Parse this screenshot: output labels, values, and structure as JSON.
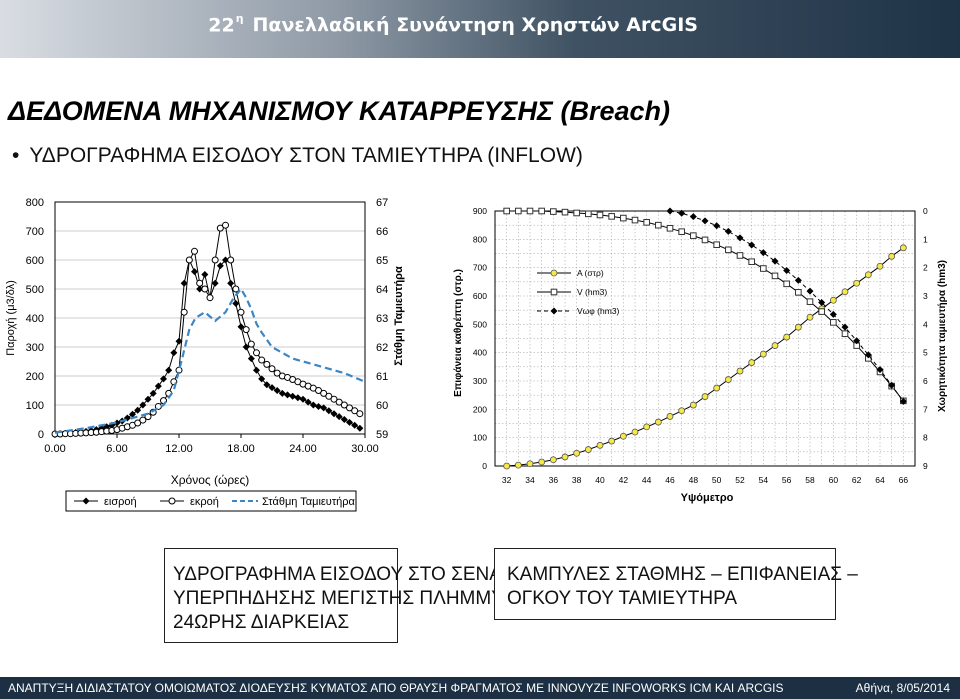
{
  "header": {
    "number": "22",
    "superscript": "η",
    "title": "Πανελλαδική Συνάντηση Χρηστών ArcGIS"
  },
  "page": {
    "title": "ΔΕΔΟΜΕΝΑ ΜΗΧΑΝΙΣΜΟΥ ΚΑΤΑΡΡΕΥΣΗΣ (Breach)",
    "bullet": "ΥΔΡΟΓΡΑΦΗΜΑ ΕΙΣΟΔΟΥ ΣΤΟΝ ΤΑΜΙΕΥΤΗΡΑ (INFLOW)"
  },
  "captions": {
    "left": [
      "ΥΔΡΟΓΡΑΦΗΜΑ ΕΙΣΟΔΟΥ ΣΤΟ ΣΕΝΑΡΙΟ",
      "ΥΠΕΡΠΗΔΗΣΗΣ ΜΕΓΙΣΤΗΣ ΠΛΗΜΜΥΡΑΣ",
      "24ΩΡΗΣ ΔΙΑΡΚΕΙΑΣ"
    ],
    "right": [
      "ΚΑΜΠΥΛΕΣ ΣΤΑΘΜΗΣ – ΕΠΙΦΑΝΕΙΑΣ –",
      "ΟΓΚΟΥ ΤΟΥ ΤΑΜΙΕΥΤΗΡΑ"
    ]
  },
  "footer": {
    "left": "ΑΝΑΠΤΥΞΗ ΔΙΔΙΑΣΤΑΤΟΥ ΟΜΟΙΩΜΑΤΟΣ ΔΙΟΔΕΥΣΗΣ ΚΥΜΑΤΟΣ ΑΠΟ ΘΡΑΥΣΗ ΦΡΑΓΜΑΤΟΣ ΜΕ INNOVYZE INFOWORKS ICM ΚΑΙ ARCGIS",
    "right": "Αθήνα, 8/05/2014"
  },
  "colors": {
    "stage_line": "#3a86c6",
    "header_dark": "#1f3347",
    "footer_bg": "#1c2f43"
  },
  "chart_data": [
    {
      "type": "line",
      "xlabel": "Χρόνος (ώρες)",
      "ylabel": "Παροχή (μ3/δλ)",
      "y2label": "Στάθμη Ταμιευτήρα",
      "xlim": [
        0,
        30
      ],
      "ylim": [
        0,
        800
      ],
      "y2lim": [
        59,
        67
      ],
      "x_ticks": [
        "0.00",
        "6.00",
        "12.00",
        "18.00",
        "24.00",
        "30.00"
      ],
      "y_ticks": [
        "0",
        "100",
        "200",
        "300",
        "400",
        "500",
        "600",
        "700",
        "800"
      ],
      "y2_ticks": [
        "59",
        "60",
        "61",
        "62",
        "63",
        "64",
        "65",
        "66",
        "67"
      ],
      "grid": true,
      "legend_position": "bottom",
      "series": [
        {
          "name": "εισροή",
          "marker": "diamond",
          "axis": "y",
          "x": [
            0,
            0.5,
            1,
            1.5,
            2,
            2.5,
            3,
            3.5,
            4,
            4.5,
            5,
            5.5,
            6,
            6.5,
            7,
            7.5,
            8,
            8.5,
            9,
            9.5,
            10,
            10.5,
            11,
            11.5,
            12,
            12.5,
            13,
            13.5,
            14,
            14.5,
            15,
            15.5,
            16,
            16.5,
            17,
            17.5,
            18,
            18.5,
            19,
            19.5,
            20,
            20.5,
            21,
            21.5,
            22,
            22.5,
            23,
            23.5,
            24,
            24.5,
            25,
            25.5,
            26,
            26.5,
            27,
            27.5,
            28,
            28.5,
            29,
            29.5
          ],
          "values": [
            0,
            1,
            2,
            3,
            5,
            7,
            9,
            12,
            15,
            20,
            25,
            30,
            38,
            45,
            55,
            68,
            82,
            100,
            120,
            140,
            165,
            190,
            220,
            280,
            320,
            520,
            600,
            560,
            500,
            550,
            470,
            520,
            580,
            600,
            520,
            450,
            370,
            300,
            260,
            220,
            190,
            170,
            160,
            150,
            140,
            135,
            130,
            125,
            120,
            110,
            100,
            95,
            90,
            80,
            70,
            60,
            50,
            40,
            30,
            20
          ]
        },
        {
          "name": "εκροή",
          "marker": "circle",
          "axis": "y",
          "x": [
            0,
            0.5,
            1,
            1.5,
            2,
            2.5,
            3,
            3.5,
            4,
            4.5,
            5,
            5.5,
            6,
            6.5,
            7,
            7.5,
            8,
            8.5,
            9,
            9.5,
            10,
            10.5,
            11,
            11.5,
            12,
            12.5,
            13,
            13.5,
            14,
            14.5,
            15,
            15.5,
            16,
            16.5,
            17,
            17.5,
            18,
            18.5,
            19,
            19.5,
            20,
            20.5,
            21,
            21.5,
            22,
            22.5,
            23,
            23.5,
            24,
            24.5,
            25,
            25.5,
            26,
            26.5,
            27,
            27.5,
            28,
            28.5,
            29,
            29.5
          ],
          "values": [
            0,
            0,
            1,
            1,
            2,
            3,
            4,
            5,
            6,
            8,
            10,
            12,
            15,
            20,
            25,
            30,
            38,
            48,
            60,
            75,
            95,
            115,
            140,
            180,
            220,
            420,
            600,
            630,
            520,
            500,
            470,
            600,
            710,
            720,
            600,
            500,
            420,
            360,
            310,
            280,
            255,
            240,
            225,
            210,
            200,
            195,
            188,
            180,
            172,
            165,
            158,
            150,
            140,
            130,
            120,
            110,
            100,
            90,
            80,
            70
          ]
        },
        {
          "name": "Στάθμη Ταμιευτήρα",
          "marker": "none",
          "axis": "y2",
          "x": [
            0,
            3,
            6,
            9,
            10.5,
            11.5,
            12.3,
            13,
            13.6,
            14.5,
            15.5,
            16.5,
            17.3,
            18,
            18.5,
            19,
            19.5,
            20,
            21,
            23,
            26,
            28,
            30
          ],
          "values": [
            59.05,
            59.2,
            59.4,
            59.7,
            60,
            60.5,
            61.6,
            62.6,
            63.0,
            63.2,
            62.9,
            63.2,
            63.7,
            64.0,
            63.7,
            63.3,
            62.8,
            62.5,
            62.0,
            61.6,
            61.3,
            61.1,
            60.8
          ]
        }
      ]
    },
    {
      "type": "line",
      "xlabel": "Υψόμετρο",
      "ylabel": "Επιφάνεια καθρέπτη (στρ.)",
      "y2label": "Χωρητικότητα ταμιευτήρα (hm3)",
      "xlim": [
        31,
        67
      ],
      "ylim": [
        0,
        900
      ],
      "y2lim": [
        0,
        9
      ],
      "y2_reversed": true,
      "x_ticks": [
        "32",
        "34",
        "36",
        "38",
        "40",
        "42",
        "44",
        "46",
        "48",
        "50",
        "52",
        "54",
        "56",
        "58",
        "60",
        "62",
        "64",
        "66"
      ],
      "y_ticks": [
        "0",
        "100",
        "200",
        "300",
        "400",
        "500",
        "600",
        "700",
        "800",
        "900"
      ],
      "y2_ticks": [
        "0",
        "1",
        "2",
        "3",
        "4",
        "5",
        "6",
        "7",
        "8",
        "9"
      ],
      "grid": true,
      "legend_position": "top-left",
      "series": [
        {
          "name": "Α (στρ)",
          "marker": "circle-filled",
          "axis": "y",
          "x": [
            32,
            33,
            34,
            35,
            36,
            37,
            38,
            39,
            40,
            41,
            42,
            43,
            44,
            45,
            46,
            47,
            48,
            49,
            50,
            51,
            52,
            53,
            54,
            55,
            56,
            57,
            58,
            59,
            60,
            61,
            62,
            63,
            64,
            65,
            66
          ],
          "values": [
            0,
            3,
            8,
            14,
            22,
            32,
            45,
            58,
            73,
            88,
            105,
            120,
            138,
            155,
            175,
            195,
            215,
            245,
            275,
            305,
            335,
            365,
            395,
            425,
            455,
            490,
            525,
            555,
            585,
            615,
            645,
            675,
            705,
            740,
            770
          ]
        },
        {
          "name": "V (hm3)",
          "marker": "square",
          "axis": "y2",
          "x": [
            32,
            33,
            34,
            35,
            36,
            37,
            38,
            39,
            40,
            41,
            42,
            43,
            44,
            45,
            46,
            47,
            48,
            49,
            50,
            51,
            52,
            53,
            54,
            55,
            56,
            57,
            58,
            59,
            60,
            61,
            62,
            63,
            64,
            65,
            66
          ],
          "values": [
            0,
            0,
            0,
            0,
            0.02,
            0.04,
            0.07,
            0.1,
            0.14,
            0.19,
            0.25,
            0.32,
            0.4,
            0.5,
            0.61,
            0.73,
            0.87,
            1.02,
            1.19,
            1.37,
            1.57,
            1.79,
            2.03,
            2.29,
            2.57,
            2.87,
            3.2,
            3.55,
            3.93,
            4.33,
            4.75,
            5.2,
            5.68,
            6.18,
            6.7
          ]
        },
        {
          "name": "Vωφ (hm3)",
          "marker": "diamond",
          "axis": "y2",
          "x": [
            46,
            47,
            48,
            49,
            50,
            51,
            52,
            53,
            54,
            55,
            56,
            57,
            58,
            59,
            60,
            61,
            62,
            63,
            64,
            65,
            66
          ],
          "values": [
            0,
            0.08,
            0.2,
            0.35,
            0.52,
            0.72,
            0.95,
            1.2,
            1.47,
            1.77,
            2.1,
            2.45,
            2.83,
            3.23,
            3.65,
            4.1,
            4.58,
            5.08,
            5.6,
            6.15,
            6.72
          ]
        }
      ]
    }
  ]
}
